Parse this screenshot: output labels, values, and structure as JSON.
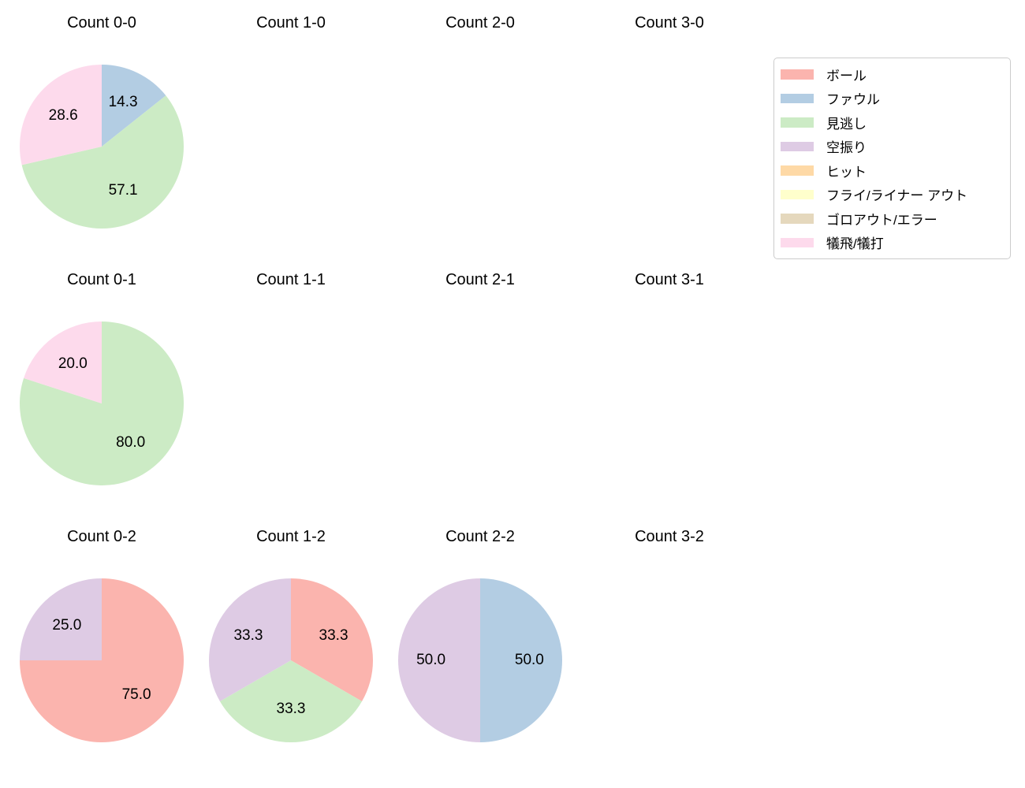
{
  "figure": {
    "background": "#ffffff",
    "text_color": "#000000"
  },
  "legend": {
    "border_color": "#cccccc",
    "items": [
      {
        "label": "ボール",
        "color": "#fbb4ae"
      },
      {
        "label": "ファウル",
        "color": "#b3cde3"
      },
      {
        "label": "見逃し",
        "color": "#ccebc5"
      },
      {
        "label": "空振り",
        "color": "#decbe4"
      },
      {
        "label": "ヒット",
        "color": "#fed9a6"
      },
      {
        "label": "フライ/ライナー アウト",
        "color": "#ffffcc"
      },
      {
        "label": "ゴロアウト/エラー",
        "color": "#e5d8bd"
      },
      {
        "label": "犠飛/犠打",
        "color": "#fddaec"
      }
    ]
  },
  "chart_data": [
    {
      "type": "pie",
      "title": "Count 0-0",
      "start_angle_deg": 90,
      "direction": "clockwise",
      "label_distance": 0.6,
      "slices": [
        {
          "label": "ファウル",
          "value": 14.3,
          "color": "#b3cde3"
        },
        {
          "label": "見逃し",
          "value": 57.1,
          "color": "#ccebc5"
        },
        {
          "label": "犠飛/犠打",
          "value": 28.6,
          "color": "#fddaec"
        }
      ]
    },
    {
      "type": "pie",
      "title": "Count 1-0",
      "slices": []
    },
    {
      "type": "pie",
      "title": "Count 2-0",
      "slices": []
    },
    {
      "type": "pie",
      "title": "Count 3-0",
      "slices": []
    },
    {
      "type": "pie",
      "title": "Count 0-1",
      "start_angle_deg": 90,
      "direction": "clockwise",
      "label_distance": 0.6,
      "slices": [
        {
          "label": "見逃し",
          "value": 80.0,
          "color": "#ccebc5"
        },
        {
          "label": "犠飛/犠打",
          "value": 20.0,
          "color": "#fddaec"
        }
      ]
    },
    {
      "type": "pie",
      "title": "Count 1-1",
      "slices": []
    },
    {
      "type": "pie",
      "title": "Count 2-1",
      "slices": []
    },
    {
      "type": "pie",
      "title": "Count 3-1",
      "slices": []
    },
    {
      "type": "pie",
      "title": "Count 0-2",
      "start_angle_deg": 90,
      "direction": "clockwise",
      "label_distance": 0.6,
      "slices": [
        {
          "label": "ボール",
          "value": 75.0,
          "color": "#fbb4ae"
        },
        {
          "label": "空振り",
          "value": 25.0,
          "color": "#decbe4"
        }
      ]
    },
    {
      "type": "pie",
      "title": "Count 1-2",
      "start_angle_deg": 90,
      "direction": "clockwise",
      "label_distance": 0.6,
      "slices": [
        {
          "label": "ボール",
          "value": 33.3,
          "color": "#fbb4ae"
        },
        {
          "label": "見逃し",
          "value": 33.3,
          "color": "#ccebc5"
        },
        {
          "label": "空振り",
          "value": 33.3,
          "color": "#decbe4"
        }
      ]
    },
    {
      "type": "pie",
      "title": "Count 2-2",
      "start_angle_deg": 90,
      "direction": "clockwise",
      "label_distance": 0.6,
      "slices": [
        {
          "label": "ファウル",
          "value": 50.0,
          "color": "#b3cde3"
        },
        {
          "label": "空振り",
          "value": 50.0,
          "color": "#decbe4"
        }
      ]
    },
    {
      "type": "pie",
      "title": "Count 3-2",
      "slices": []
    }
  ]
}
